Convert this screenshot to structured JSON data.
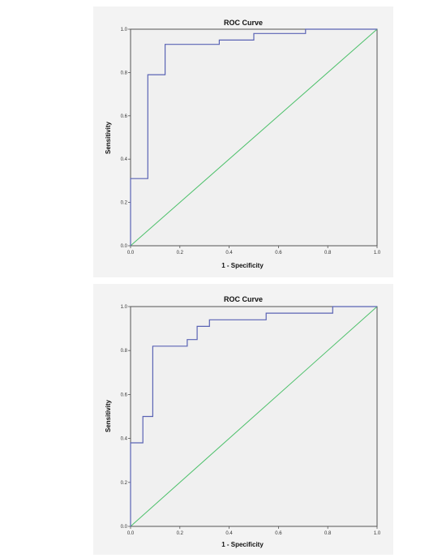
{
  "colors": {
    "roc_curve": "#5a63b4",
    "reference_line": "#4cc06a",
    "panel_background": "#f3f3f3",
    "plot_background": "#f0f0f0",
    "frame": "#555555"
  },
  "chart_data": [
    {
      "type": "line",
      "title": "ROC Curve",
      "xlabel": "1 - Specificity",
      "ylabel": "Sensitivity",
      "xlim": [
        0,
        1
      ],
      "ylim": [
        0,
        1
      ],
      "xticks": [
        "0.0",
        "0.2",
        "0.4",
        "0.6",
        "0.8",
        "1.0"
      ],
      "yticks": [
        "0.0",
        "0.2",
        "0.4",
        "0.6",
        "0.8",
        "1.0"
      ],
      "grid": false,
      "series": [
        {
          "x": [
            0.0,
            0.0,
            0.07,
            0.07,
            0.14,
            0.14,
            0.36,
            0.36,
            0.5,
            0.5,
            0.71,
            0.71,
            1.0
          ],
          "y": [
            0.0,
            0.31,
            0.31,
            0.79,
            0.79,
            0.93,
            0.93,
            0.95,
            0.95,
            0.98,
            0.98,
            1.0,
            1.0
          ]
        },
        {
          "x": [
            0,
            1
          ],
          "y": [
            0,
            1
          ]
        }
      ]
    },
    {
      "type": "line",
      "title": "ROC Curve",
      "xlabel": "1 - Specificity",
      "ylabel": "Sensitivity",
      "xlim": [
        0,
        1
      ],
      "ylim": [
        0,
        1
      ],
      "xticks": [
        "0.0",
        "0.2",
        "0.4",
        "0.6",
        "0.8",
        "1.0"
      ],
      "yticks": [
        "0.0",
        "0.2",
        "0.4",
        "0.6",
        "0.8",
        "1.0"
      ],
      "grid": false,
      "series": [
        {
          "x": [
            0.0,
            0.0,
            0.05,
            0.05,
            0.09,
            0.09,
            0.23,
            0.23,
            0.27,
            0.27,
            0.32,
            0.32,
            0.55,
            0.55,
            0.82,
            0.82,
            1.0
          ],
          "y": [
            0.0,
            0.38,
            0.38,
            0.5,
            0.5,
            0.82,
            0.82,
            0.85,
            0.85,
            0.91,
            0.91,
            0.94,
            0.94,
            0.97,
            0.97,
            1.0,
            1.0
          ]
        },
        {
          "x": [
            0,
            1
          ],
          "y": [
            0,
            1
          ]
        }
      ]
    }
  ]
}
